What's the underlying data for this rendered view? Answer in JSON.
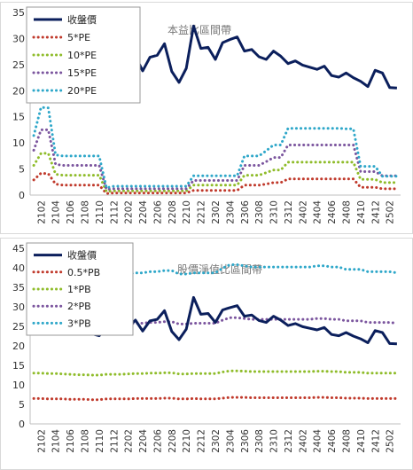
{
  "chart_data": [
    {
      "type": "line",
      "title": "本益比區間帶",
      "x": [
        "2101",
        "2102",
        "2103",
        "2104",
        "2105",
        "2106",
        "2107",
        "2108",
        "2109",
        "2110",
        "2111",
        "2112",
        "2201",
        "2202",
        "2203",
        "2204",
        "2205",
        "2206",
        "2207",
        "2208",
        "2209",
        "2210",
        "2211",
        "2212",
        "2301",
        "2302",
        "2303",
        "2304",
        "2305",
        "2306",
        "2307",
        "2308",
        "2309",
        "2310",
        "2311",
        "2312",
        "2401",
        "2402",
        "2403",
        "2404",
        "2405",
        "2406",
        "2407",
        "2408",
        "2409",
        "2410",
        "2411",
        "2412",
        "2501",
        "2502",
        "2503"
      ],
      "xticks": [
        "2102",
        "2104",
        "2106",
        "2108",
        "2110",
        "2112",
        "2202",
        "2204",
        "2206",
        "2208",
        "2210",
        "2212",
        "2302",
        "2304",
        "2306",
        "2308",
        "2310",
        "2312",
        "2402",
        "2404",
        "2406",
        "2408",
        "2410",
        "2412",
        "2502"
      ],
      "ylim": [
        0,
        35
      ],
      "yticks": [
        0,
        5,
        10,
        15,
        20,
        25,
        30,
        35
      ],
      "legend": "top-left",
      "grid": false,
      "series": [
        {
          "name": "收盤價",
          "color": "#0b1f5c",
          "style": "solid",
          "values": [
            26.0,
            25.0,
            24.8,
            25.1,
            25.9,
            24.6,
            24.4,
            24.4,
            23.1,
            22.6,
            24.5,
            24.5,
            24.4,
            24.7,
            26.6,
            23.8,
            26.4,
            26.8,
            29.0,
            23.7,
            21.6,
            24.3,
            32.4,
            28.1,
            28.3,
            26.0,
            29.2,
            29.8,
            30.3,
            27.6,
            27.9,
            26.5,
            26.0,
            27.6,
            26.6,
            25.2,
            25.7,
            24.9,
            24.5,
            24.1,
            24.7,
            22.9,
            22.6,
            23.4,
            22.5,
            21.8,
            20.8,
            23.9,
            23.4,
            20.6,
            20.5
          ]
        },
        {
          "name": "5*PE",
          "color": "#c0392b",
          "style": "dotted",
          "values": [
            2.9,
            4.2,
            4.1,
            2.1,
            1.9,
            1.9,
            1.9,
            1.9,
            1.9,
            1.9,
            0.3,
            0.4,
            0.4,
            0.4,
            0.4,
            0.4,
            0.4,
            0.4,
            0.4,
            0.4,
            0.4,
            0.4,
            0.9,
            0.9,
            0.9,
            0.9,
            0.9,
            0.9,
            0.9,
            1.9,
            1.9,
            1.9,
            2.1,
            2.4,
            2.4,
            3.1,
            3.1,
            3.1,
            3.1,
            3.1,
            3.1,
            3.1,
            3.1,
            3.1,
            3.1,
            1.5,
            1.5,
            1.5,
            1.2,
            1.2,
            1.2
          ]
        },
        {
          "name": "10*PE",
          "color": "#8fbc2a",
          "style": "dotted",
          "values": [
            5.7,
            8.0,
            8.0,
            4.0,
            3.8,
            3.8,
            3.8,
            3.8,
            3.8,
            3.8,
            0.7,
            0.8,
            0.8,
            0.8,
            0.8,
            0.8,
            0.8,
            0.8,
            0.8,
            0.8,
            0.8,
            0.8,
            1.9,
            1.9,
            1.9,
            1.9,
            1.9,
            1.9,
            1.9,
            3.8,
            3.8,
            3.8,
            4.3,
            4.8,
            4.8,
            6.3,
            6.3,
            6.3,
            6.3,
            6.3,
            6.3,
            6.3,
            6.3,
            6.3,
            6.3,
            3.0,
            3.0,
            3.0,
            2.4,
            2.4,
            2.4
          ]
        },
        {
          "name": "15*PE",
          "color": "#7b559e",
          "style": "dotted",
          "values": [
            8.6,
            12.5,
            12.5,
            5.9,
            5.7,
            5.7,
            5.7,
            5.7,
            5.7,
            5.7,
            1.1,
            1.2,
            1.2,
            1.2,
            1.2,
            1.2,
            1.2,
            1.2,
            1.2,
            1.2,
            1.2,
            1.2,
            2.8,
            2.8,
            2.8,
            2.8,
            2.8,
            2.8,
            2.8,
            5.7,
            5.7,
            5.7,
            6.4,
            7.2,
            7.2,
            9.6,
            9.6,
            9.6,
            9.6,
            9.6,
            9.6,
            9.6,
            9.6,
            9.6,
            9.6,
            4.5,
            4.5,
            4.5,
            3.7,
            3.7,
            3.7
          ]
        },
        {
          "name": "20*PE",
          "color": "#2ea7c9",
          "style": "dotted",
          "values": [
            11.4,
            16.8,
            16.7,
            7.7,
            7.5,
            7.5,
            7.5,
            7.5,
            7.5,
            7.5,
            1.4,
            1.7,
            1.7,
            1.7,
            1.7,
            1.7,
            1.7,
            1.7,
            1.7,
            1.7,
            1.7,
            1.7,
            3.7,
            3.7,
            3.7,
            3.7,
            3.7,
            3.7,
            3.7,
            7.5,
            7.5,
            7.5,
            8.5,
            9.6,
            9.6,
            12.8,
            12.8,
            12.8,
            12.8,
            12.8,
            12.8,
            12.8,
            12.8,
            12.7,
            12.7,
            5.5,
            5.5,
            5.5,
            3.6,
            3.6,
            3.6
          ]
        }
      ]
    },
    {
      "type": "line",
      "title": "股價淨值比區間帶",
      "x": [
        "2101",
        "2102",
        "2103",
        "2104",
        "2105",
        "2106",
        "2107",
        "2108",
        "2109",
        "2110",
        "2111",
        "2112",
        "2201",
        "2202",
        "2203",
        "2204",
        "2205",
        "2206",
        "2207",
        "2208",
        "2209",
        "2210",
        "2211",
        "2212",
        "2301",
        "2302",
        "2303",
        "2304",
        "2305",
        "2306",
        "2307",
        "2308",
        "2309",
        "2310",
        "2311",
        "2312",
        "2401",
        "2402",
        "2403",
        "2404",
        "2405",
        "2406",
        "2407",
        "2408",
        "2409",
        "2410",
        "2411",
        "2412",
        "2501",
        "2502",
        "2503"
      ],
      "xticks": [
        "2102",
        "2104",
        "2106",
        "2108",
        "2110",
        "2112",
        "2202",
        "2204",
        "2206",
        "2208",
        "2210",
        "2212",
        "2302",
        "2304",
        "2306",
        "2308",
        "2310",
        "2312",
        "2402",
        "2404",
        "2406",
        "2408",
        "2410",
        "2412",
        "2502"
      ],
      "ylim": [
        0,
        45
      ],
      "yticks": [
        0,
        5,
        10,
        15,
        20,
        25,
        30,
        35,
        40,
        45
      ],
      "legend": "top-left",
      "grid": false,
      "series": [
        {
          "name": "收盤價",
          "color": "#0b1f5c",
          "style": "solid",
          "values": [
            26.0,
            25.0,
            24.8,
            25.1,
            25.9,
            24.6,
            24.4,
            24.4,
            23.1,
            22.6,
            24.5,
            24.5,
            24.4,
            24.7,
            26.6,
            23.8,
            26.4,
            26.8,
            29.0,
            23.7,
            21.6,
            24.3,
            32.4,
            28.1,
            28.3,
            26.0,
            29.2,
            29.8,
            30.3,
            27.6,
            27.9,
            26.5,
            26.0,
            27.6,
            26.6,
            25.2,
            25.7,
            24.9,
            24.5,
            24.1,
            24.7,
            22.9,
            22.6,
            23.4,
            22.5,
            21.8,
            20.8,
            23.9,
            23.4,
            20.6,
            20.5
          ]
        },
        {
          "name": "0.5*PB",
          "color": "#c0392b",
          "style": "dotted",
          "values": [
            6.5,
            6.5,
            6.4,
            6.4,
            6.4,
            6.3,
            6.3,
            6.3,
            6.2,
            6.2,
            6.4,
            6.4,
            6.4,
            6.4,
            6.5,
            6.5,
            6.5,
            6.5,
            6.6,
            6.6,
            6.4,
            6.4,
            6.5,
            6.4,
            6.4,
            6.4,
            6.6,
            6.8,
            6.8,
            6.8,
            6.7,
            6.7,
            6.7,
            6.7,
            6.7,
            6.7,
            6.7,
            6.7,
            6.7,
            6.8,
            6.8,
            6.7,
            6.7,
            6.6,
            6.6,
            6.6,
            6.5,
            6.5,
            6.5,
            6.5,
            6.5
          ]
        },
        {
          "name": "1*PB",
          "color": "#8fbc2a",
          "style": "dotted",
          "values": [
            13.0,
            13.0,
            12.9,
            12.9,
            12.8,
            12.7,
            12.6,
            12.6,
            12.5,
            12.5,
            12.7,
            12.7,
            12.7,
            12.8,
            12.9,
            12.9,
            13.0,
            13.0,
            13.1,
            13.1,
            12.8,
            12.8,
            12.9,
            12.9,
            12.9,
            12.9,
            13.3,
            13.6,
            13.6,
            13.5,
            13.4,
            13.4,
            13.4,
            13.4,
            13.4,
            13.4,
            13.4,
            13.4,
            13.4,
            13.5,
            13.5,
            13.4,
            13.4,
            13.2,
            13.2,
            13.2,
            13.0,
            13.0,
            13.0,
            13.0,
            13.0
          ]
        },
        {
          "name": "2*PB",
          "color": "#7b559e",
          "style": "dotted",
          "values": [
            26.0,
            26.0,
            25.8,
            25.8,
            25.6,
            25.4,
            25.3,
            25.2,
            25.0,
            25.0,
            25.4,
            25.4,
            25.4,
            25.6,
            25.8,
            25.8,
            26.0,
            26.0,
            26.2,
            26.2,
            25.6,
            25.6,
            25.8,
            25.8,
            25.8,
            25.8,
            26.6,
            27.2,
            27.2,
            27.0,
            26.8,
            26.8,
            26.8,
            26.8,
            26.8,
            26.8,
            26.8,
            26.8,
            26.8,
            27.0,
            27.0,
            26.8,
            26.8,
            26.4,
            26.4,
            26.4,
            26.0,
            26.0,
            26.0,
            26.0,
            25.8
          ]
        },
        {
          "name": "3*PB",
          "color": "#2ea7c9",
          "style": "dotted",
          "values": [
            39.0,
            39.0,
            38.7,
            38.7,
            38.4,
            38.1,
            37.9,
            37.8,
            37.5,
            37.5,
            38.1,
            38.1,
            38.1,
            38.4,
            38.7,
            38.7,
            39.0,
            39.0,
            39.3,
            39.3,
            38.4,
            38.4,
            38.7,
            38.7,
            38.7,
            38.7,
            39.9,
            40.8,
            40.8,
            40.5,
            40.2,
            40.2,
            40.2,
            40.2,
            40.2,
            40.2,
            40.2,
            40.2,
            40.2,
            40.5,
            40.5,
            40.2,
            40.2,
            39.6,
            39.6,
            39.6,
            39.0,
            39.0,
            39.0,
            39.0,
            38.7
          ]
        }
      ]
    }
  ]
}
